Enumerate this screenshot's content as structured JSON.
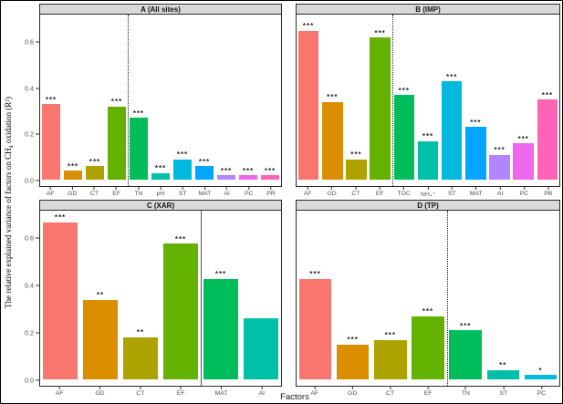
{
  "figure": {
    "xlabel": "Factors",
    "ylabel": "The relative explained variance of factors on CH₄ oxidation (R²)",
    "strip_fill": "#d9d9d9",
    "background": "#ffffff",
    "y_tick_labels": [
      "0.0",
      "0.2",
      "0.4",
      "0.6"
    ],
    "y_tick_values": [
      0.0,
      0.2,
      0.4,
      0.6
    ]
  },
  "chart_data": [
    {
      "type": "bar",
      "panel_label": "A",
      "title": "A (All sites)",
      "categories": [
        "AF",
        "GD",
        "CT",
        "EF",
        "TN",
        "pH",
        "ST",
        "MAT",
        "AI",
        "PC",
        "PR"
      ],
      "values": [
        0.33,
        0.04,
        0.06,
        0.32,
        0.27,
        0.03,
        0.09,
        0.06,
        0.02,
        0.02,
        0.02
      ],
      "significance": [
        "***",
        "***",
        "***",
        "***",
        "***",
        "***",
        "***",
        "***",
        "***",
        "***",
        "***"
      ],
      "colors": [
        "#F8766D",
        "#DB8E00",
        "#AEA200",
        "#64B200",
        "#00BD5C",
        "#00C1A7",
        "#00BADE",
        "#00A6FF",
        "#B385FF",
        "#EF67EB",
        "#FF63B6"
      ],
      "divider_after_index": 3,
      "divider_style": "dotted",
      "ylim": [
        0,
        0.72
      ],
      "grid": false,
      "legend": "none"
    },
    {
      "type": "bar",
      "panel_label": "B",
      "title": "B (IMP)",
      "categories": [
        "AF",
        "GD",
        "CT",
        "EF",
        "TOC",
        "NH₄⁺",
        "ST",
        "MAT",
        "AI",
        "PC",
        "PB"
      ],
      "values": [
        0.65,
        0.34,
        0.09,
        0.62,
        0.37,
        0.17,
        0.43,
        0.23,
        0.11,
        0.16,
        0.35
      ],
      "significance": [
        "***",
        "***",
        "***",
        "***",
        "***",
        "***",
        "***",
        "***",
        "***",
        "***",
        "***"
      ],
      "colors": [
        "#F8766D",
        "#DB8E00",
        "#AEA200",
        "#64B200",
        "#00BD5C",
        "#00C1A7",
        "#00BADE",
        "#00A6FF",
        "#B385FF",
        "#EF67EB",
        "#FF63B6"
      ],
      "divider_after_index": 3,
      "divider_style": "dotted",
      "ylim": [
        0,
        0.72
      ],
      "grid": false,
      "legend": "none"
    },
    {
      "type": "bar",
      "panel_label": "C",
      "title": "C (XAR)",
      "categories": [
        "AF",
        "GD",
        "CT",
        "EF",
        "MAT",
        "AI"
      ],
      "values": [
        0.67,
        0.34,
        0.18,
        0.58,
        0.43,
        0.26
      ],
      "significance": [
        "***",
        "**",
        "**",
        "***",
        "***",
        ""
      ],
      "colors": [
        "#F8766D",
        "#DB8E00",
        "#AEA200",
        "#64B200",
        "#00BD5C",
        "#00C1A7"
      ],
      "divider_after_index": 3,
      "divider_style": "solid",
      "ylim": [
        0,
        0.72
      ],
      "grid": false,
      "legend": "none"
    },
    {
      "type": "bar",
      "panel_label": "D",
      "title": "D (TP)",
      "categories": [
        "AF",
        "GD",
        "CT",
        "EF",
        "TN",
        "ST",
        "PC"
      ],
      "values": [
        0.43,
        0.15,
        0.17,
        0.27,
        0.21,
        0.04,
        0.02
      ],
      "significance": [
        "***",
        "***",
        "***",
        "***",
        "***",
        "**",
        "*"
      ],
      "colors": [
        "#F8766D",
        "#DB8E00",
        "#AEA200",
        "#64B200",
        "#00BD5C",
        "#00C1A7",
        "#00BADE"
      ],
      "divider_after_index": 3,
      "divider_style": "dotted",
      "ylim": [
        0,
        0.72
      ],
      "grid": false,
      "legend": "none"
    }
  ]
}
